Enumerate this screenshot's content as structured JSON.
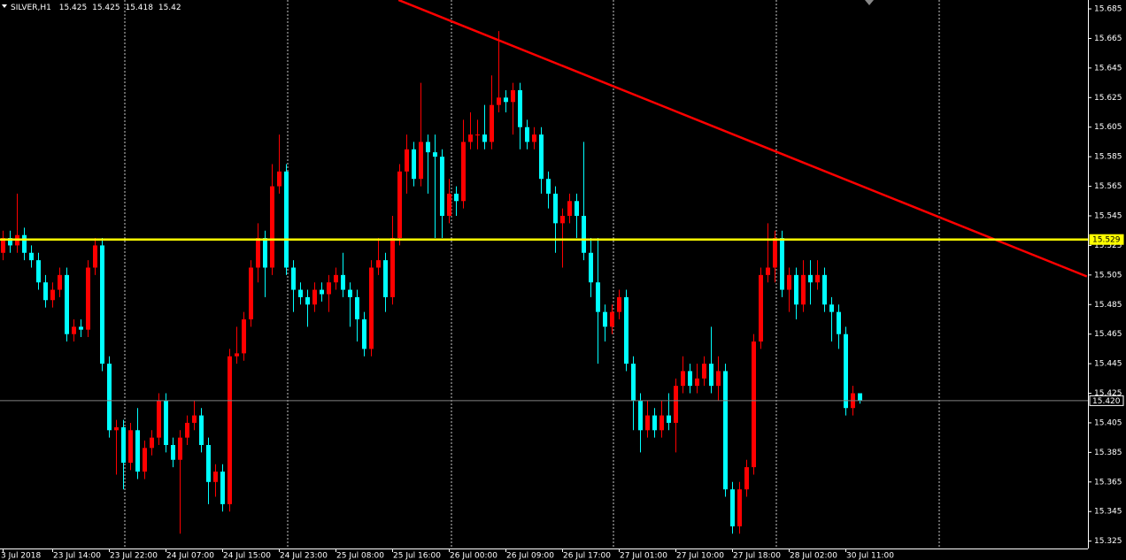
{
  "chart_data": {
    "type": "candlestick",
    "symbol": "SILVER,H1",
    "categories": [
      "3 Jul 2018",
      null,
      null,
      null,
      null,
      null,
      null,
      "23 Jul 14:00",
      null,
      null,
      null,
      null,
      null,
      null,
      null,
      "23 Jul 22:00",
      null,
      null,
      null,
      null,
      null,
      null,
      null,
      "24 Jul 07:00",
      null,
      null,
      null,
      null,
      null,
      null,
      null,
      "24 Jul 15:00",
      null,
      null,
      null,
      null,
      null,
      null,
      null,
      "24 Jul 23:00",
      null,
      null,
      null,
      null,
      null,
      null,
      null,
      "25 Jul 08:00",
      null,
      null,
      null,
      null,
      null,
      null,
      null,
      "25 Jul 16:00",
      null,
      null,
      null,
      null,
      null,
      null,
      null,
      "26 Jul 00:00",
      null,
      null,
      null,
      null,
      null,
      null,
      null,
      "26 Jul 09:00",
      null,
      null,
      null,
      null,
      null,
      null,
      null,
      "26 Jul 17:00",
      null,
      null,
      null,
      null,
      null,
      null,
      null,
      "27 Jul 01:00",
      null,
      null,
      null,
      null,
      null,
      null,
      null,
      "27 Jul 10:00",
      null,
      null,
      null,
      null,
      null,
      null,
      null,
      "27 Jul 18:00",
      null,
      null,
      null,
      null,
      null,
      null,
      null,
      "28 Jul 02:00",
      null,
      null,
      null,
      null,
      null,
      null,
      null,
      "30 Jul 11:00",
      null,
      null
    ],
    "open": [
      15.52,
      15.53,
      15.525,
      15.532,
      15.52,
      15.515,
      15.5,
      15.488,
      15.495,
      15.505,
      15.465,
      15.47,
      15.468,
      15.51,
      15.525,
      15.445,
      15.4,
      15.402,
      15.378,
      15.4,
      15.372,
      15.388,
      15.395,
      15.42,
      15.39,
      15.38,
      15.395,
      15.405,
      15.41,
      15.39,
      15.365,
      15.372,
      15.35,
      15.45,
      15.452,
      15.475,
      15.51,
      15.53,
      15.51,
      15.565,
      15.575,
      15.51,
      15.495,
      15.49,
      15.485,
      15.495,
      15.492,
      15.5,
      15.505,
      15.495,
      15.49,
      15.475,
      15.455,
      15.51,
      15.515,
      15.49,
      15.53,
      15.575,
      15.59,
      15.57,
      15.595,
      15.588,
      15.585,
      15.545,
      15.56,
      15.555,
      15.595,
      15.6,
      15.6,
      15.595,
      15.62,
      15.625,
      15.622,
      15.63,
      15.605,
      15.595,
      15.6,
      15.57,
      15.56,
      15.54,
      15.545,
      15.555,
      15.545,
      15.52,
      15.5,
      15.48,
      15.47,
      15.48,
      15.49,
      15.445,
      15.42,
      15.4,
      15.41,
      15.4,
      15.41,
      15.405,
      15.43,
      15.44,
      15.43,
      15.435,
      15.445,
      15.43,
      15.44,
      15.36,
      15.335,
      15.36,
      15.375,
      15.46,
      15.505,
      15.51,
      15.53,
      15.495,
      15.505,
      15.485,
      15.505,
      15.5,
      15.505,
      15.485,
      15.48,
      15.465,
      15.415,
      15.425
    ],
    "high": [
      15.535,
      15.535,
      15.56,
      15.537,
      15.525,
      15.52,
      15.505,
      15.5,
      15.51,
      15.51,
      15.475,
      15.475,
      15.515,
      15.53,
      15.53,
      15.45,
      15.407,
      15.407,
      15.405,
      15.415,
      15.393,
      15.4,
      15.425,
      15.425,
      15.395,
      15.4,
      15.41,
      15.42,
      15.415,
      15.395,
      15.377,
      15.377,
      15.455,
      15.47,
      15.48,
      15.515,
      15.54,
      15.535,
      15.58,
      15.6,
      15.58,
      15.515,
      15.5,
      15.495,
      15.5,
      15.5,
      15.505,
      15.51,
      15.52,
      15.5,
      15.495,
      15.48,
      15.515,
      15.53,
      15.52,
      15.545,
      15.58,
      15.6,
      15.595,
      15.635,
      15.6,
      15.6,
      15.59,
      15.57,
      15.565,
      15.61,
      15.615,
      15.61,
      15.62,
      15.64,
      15.67,
      15.63,
      15.635,
      15.635,
      15.61,
      15.605,
      15.605,
      15.575,
      15.565,
      15.55,
      15.56,
      15.56,
      15.595,
      15.53,
      15.53,
      15.485,
      15.485,
      15.495,
      15.495,
      15.45,
      15.425,
      15.42,
      15.415,
      15.42,
      15.425,
      15.435,
      15.45,
      15.445,
      15.445,
      15.45,
      15.47,
      15.45,
      15.445,
      15.365,
      15.365,
      15.38,
      15.465,
      15.51,
      15.54,
      15.535,
      15.535,
      15.51,
      15.51,
      15.515,
      15.515,
      15.515,
      15.51,
      15.49,
      15.485,
      15.47,
      15.43,
      15.425
    ],
    "low": [
      15.515,
      15.52,
      15.52,
      15.515,
      15.51,
      15.495,
      15.483,
      15.483,
      15.49,
      15.46,
      15.46,
      15.463,
      15.463,
      15.505,
      15.44,
      15.395,
      15.37,
      15.36,
      15.373,
      15.367,
      15.367,
      15.383,
      15.39,
      15.385,
      15.375,
      15.33,
      15.39,
      15.4,
      15.385,
      15.35,
      15.355,
      15.345,
      15.345,
      15.445,
      15.447,
      15.47,
      15.5,
      15.49,
      15.505,
      15.56,
      15.505,
      15.48,
      15.485,
      15.47,
      15.48,
      15.487,
      15.48,
      15.495,
      15.49,
      15.47,
      15.46,
      15.45,
      15.45,
      15.505,
      15.48,
      15.485,
      15.525,
      15.56,
      15.565,
      15.565,
      15.56,
      15.53,
      15.53,
      15.54,
      15.545,
      15.55,
      15.59,
      15.59,
      15.59,
      15.59,
      15.615,
      15.615,
      15.6,
      15.59,
      15.59,
      15.59,
      15.56,
      15.55,
      15.52,
      15.51,
      15.54,
      15.53,
      15.515,
      15.49,
      15.445,
      15.46,
      15.465,
      15.475,
      15.44,
      15.4,
      15.385,
      15.395,
      15.395,
      15.395,
      15.4,
      15.385,
      15.425,
      15.425,
      15.425,
      15.43,
      15.425,
      15.42,
      15.355,
      15.33,
      15.33,
      15.355,
      15.37,
      15.455,
      15.5,
      15.5,
      15.49,
      15.48,
      15.475,
      15.48,
      15.485,
      15.495,
      15.48,
      15.46,
      15.455,
      15.41,
      15.41,
      15.418
    ],
    "close": [
      15.53,
      15.525,
      15.532,
      15.52,
      15.515,
      15.5,
      15.488,
      15.495,
      15.505,
      15.465,
      15.47,
      15.468,
      15.51,
      15.525,
      15.445,
      15.4,
      15.402,
      15.378,
      15.4,
      15.372,
      15.388,
      15.395,
      15.42,
      15.39,
      15.38,
      15.395,
      15.405,
      15.41,
      15.39,
      15.365,
      15.372,
      15.35,
      15.45,
      15.452,
      15.475,
      15.51,
      15.53,
      15.51,
      15.565,
      15.575,
      15.51,
      15.495,
      15.49,
      15.485,
      15.495,
      15.492,
      15.5,
      15.505,
      15.495,
      15.49,
      15.475,
      15.455,
      15.51,
      15.515,
      15.49,
      15.53,
      15.575,
      15.59,
      15.57,
      15.595,
      15.588,
      15.585,
      15.545,
      15.56,
      15.555,
      15.595,
      15.6,
      15.6,
      15.595,
      15.62,
      15.625,
      15.622,
      15.63,
      15.605,
      15.595,
      15.6,
      15.57,
      15.56,
      15.54,
      15.545,
      15.555,
      15.545,
      15.52,
      15.5,
      15.48,
      15.47,
      15.48,
      15.49,
      15.445,
      15.42,
      15.4,
      15.41,
      15.4,
      15.41,
      15.405,
      15.43,
      15.44,
      15.43,
      15.435,
      15.445,
      15.43,
      15.44,
      15.36,
      15.335,
      15.36,
      15.375,
      15.46,
      15.505,
      15.51,
      15.53,
      15.495,
      15.505,
      15.485,
      15.505,
      15.5,
      15.505,
      15.485,
      15.48,
      15.465,
      15.415,
      15.425,
      15.42
    ],
    "up_color": "#ff0000",
    "down_color": "#00ffff",
    "ylim": [
      15.32,
      15.691
    ],
    "yticks": [
      15.685,
      15.665,
      15.645,
      15.625,
      15.605,
      15.585,
      15.565,
      15.545,
      15.525,
      15.505,
      15.485,
      15.465,
      15.445,
      15.425,
      15.405,
      15.385,
      15.365,
      15.345,
      15.325
    ],
    "price_lines": [
      {
        "value": 15.529,
        "label": "15.529",
        "color": "#ffff00"
      },
      {
        "value": 15.42,
        "label": "15.420",
        "color": "#808080"
      }
    ],
    "trendline": {
      "color": "#ff0000",
      "x": [
        55.9,
        153.1
      ],
      "y": [
        15.691,
        15.504
      ]
    }
  }
}
